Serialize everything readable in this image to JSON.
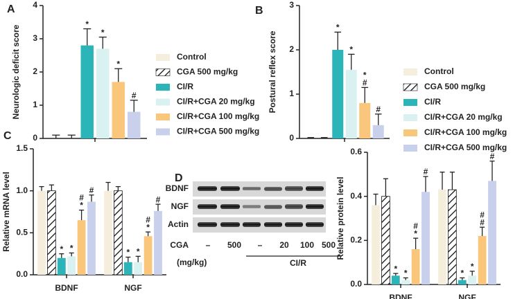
{
  "chart_data": [
    {
      "type": "bar",
      "panel": "A",
      "y_label": "Neurologic deficit score",
      "ylim": [
        0,
        4
      ],
      "yticks": [
        0,
        1,
        2,
        3,
        4
      ],
      "legend": true,
      "legend_position": "right",
      "series": [
        {
          "name": "Control",
          "color": "#f6eedc",
          "values": [
            0
          ],
          "errors": [
            0.1
          ],
          "annotations": [
            []
          ]
        },
        {
          "name": "CGA 500 mg/kg",
          "color": "#ffffff",
          "pattern": "hatch",
          "values": [
            0
          ],
          "errors": [
            0.1
          ],
          "annotations": [
            []
          ]
        },
        {
          "name": "CI/R",
          "color": "#2bb5b9",
          "values": [
            2.8
          ],
          "errors": [
            0.5
          ],
          "annotations": [
            [
              "*"
            ]
          ]
        },
        {
          "name": "CI/R+CGA 20 mg/kg",
          "color": "#d9f1f1",
          "values": [
            2.7
          ],
          "errors": [
            0.35
          ],
          "annotations": [
            [
              "*"
            ]
          ]
        },
        {
          "name": "CI/R+CGA 100 mg/kg",
          "color": "#f9c67c",
          "values": [
            1.7
          ],
          "errors": [
            0.4
          ],
          "annotations": [
            [
              "*"
            ]
          ]
        },
        {
          "name": "CI/R+CGA 500 mg/kg",
          "color": "#c8d0ec",
          "values": [
            0.8
          ],
          "errors": [
            0.35
          ],
          "annotations": [
            [
              "#"
            ]
          ]
        }
      ]
    },
    {
      "type": "bar",
      "panel": "B",
      "y_label": "Postural reflex score",
      "ylim": [
        0,
        3
      ],
      "yticks": [
        0,
        1,
        2,
        3
      ],
      "legend": true,
      "legend_position": "right",
      "series": [
        {
          "name": "Control",
          "color": "#f6eedc",
          "values": [
            0
          ],
          "errors": [
            0.02
          ],
          "annotations": [
            []
          ]
        },
        {
          "name": "CGA 500 mg/kg",
          "color": "#ffffff",
          "pattern": "hatch",
          "values": [
            0
          ],
          "errors": [
            0.02
          ],
          "annotations": [
            []
          ]
        },
        {
          "name": "CI/R",
          "color": "#2bb5b9",
          "values": [
            2.0
          ],
          "errors": [
            0.4
          ],
          "annotations": [
            [
              "*"
            ]
          ]
        },
        {
          "name": "CI/R+CGA 20 mg/kg",
          "color": "#d9f1f1",
          "values": [
            1.55
          ],
          "errors": [
            0.35
          ],
          "annotations": [
            [
              "*"
            ]
          ]
        },
        {
          "name": "CI/R+CGA 100 mg/kg",
          "color": "#f9c67c",
          "values": [
            0.8
          ],
          "errors": [
            0.35
          ],
          "annotations": [
            [
              "#",
              "*"
            ]
          ]
        },
        {
          "name": "CI/R+CGA 500 mg/kg",
          "color": "#c8d0ec",
          "values": [
            0.3
          ],
          "errors": [
            0.25
          ],
          "annotations": [
            [
              "#"
            ]
          ]
        }
      ]
    },
    {
      "type": "bar",
      "panel": "C",
      "y_label": "Relative mRNA level",
      "categories": [
        "BDNF",
        "NGF"
      ],
      "ylim": [
        0,
        1.5
      ],
      "yticks": [
        {
          "value": 0,
          "label": "0.0"
        },
        0.5,
        {
          "value": 1,
          "label": "1.0"
        },
        1.5
      ],
      "legend": false,
      "series": [
        {
          "name": "Control",
          "color": "#f6eedc",
          "values": [
            1.0,
            1.0
          ],
          "errors": [
            0.05,
            0.1
          ],
          "annotations": [
            [],
            []
          ]
        },
        {
          "name": "CGA 500 mg/kg",
          "color": "#ffffff",
          "pattern": "hatch",
          "values": [
            1.0,
            1.0
          ],
          "errors": [
            0.07,
            0.05
          ],
          "annotations": [
            [],
            []
          ]
        },
        {
          "name": "CI/R",
          "color": "#2bb5b9",
          "values": [
            0.2,
            0.15
          ],
          "errors": [
            0.05,
            0.06
          ],
          "annotations": [
            [
              "*"
            ],
            [
              "*"
            ]
          ]
        },
        {
          "name": "CI/R+CGA 20 mg/kg",
          "color": "#d9f1f1",
          "values": [
            0.22,
            0.15
          ],
          "errors": [
            0.04,
            0.07
          ],
          "annotations": [
            [
              "*"
            ],
            [
              "*"
            ]
          ]
        },
        {
          "name": "CI/R+CGA 100 mg/kg",
          "color": "#f9c67c",
          "values": [
            0.65,
            0.46
          ],
          "errors": [
            0.12,
            0.05
          ],
          "annotations": [
            [
              "*",
              "#"
            ],
            [
              "*",
              "#"
            ]
          ]
        },
        {
          "name": "CI/R+CGA 500 mg/kg",
          "color": "#c8d0ec",
          "values": [
            0.87,
            0.76
          ],
          "errors": [
            0.08,
            0.08
          ],
          "annotations": [
            [
              "#"
            ],
            [
              "#"
            ]
          ]
        }
      ]
    },
    {
      "type": "bar",
      "panel": "D",
      "y_label": "Relative protein level",
      "categories": [
        "BDNF",
        "NGF"
      ],
      "ylim": [
        0,
        0.6
      ],
      "yticks": [
        {
          "value": 0,
          "label": "0.0"
        },
        0.2,
        0.4,
        0.6
      ],
      "legend": false,
      "series": [
        {
          "name": "Control",
          "color": "#f6eedc",
          "values": [
            0.36,
            0.43
          ],
          "errors": [
            0.05,
            0.08
          ],
          "annotations": [
            [],
            []
          ]
        },
        {
          "name": "CGA 500 mg/kg",
          "color": "#ffffff",
          "pattern": "hatch",
          "values": [
            0.4,
            0.43
          ],
          "errors": [
            0.08,
            0.08
          ],
          "annotations": [
            [],
            []
          ]
        },
        {
          "name": "CI/R",
          "color": "#2bb5b9",
          "values": [
            0.04,
            0.02
          ],
          "errors": [
            0.01,
            0.01
          ],
          "annotations": [
            [
              "*"
            ],
            [
              "*"
            ]
          ]
        },
        {
          "name": "CI/R+CGA 20 mg/kg",
          "color": "#d9f1f1",
          "values": [
            0.02,
            0.04
          ],
          "errors": [
            0.01,
            0.02
          ],
          "annotations": [
            [
              "*"
            ],
            [
              "*"
            ]
          ]
        },
        {
          "name": "CI/R+CGA 100 mg/kg",
          "color": "#f9c67c",
          "values": [
            0.16,
            0.22
          ],
          "errors": [
            0.05,
            0.04
          ],
          "annotations": [
            [
              "*",
              "#"
            ],
            [
              "#",
              "#"
            ]
          ]
        },
        {
          "name": "CI/R+CGA 500 mg/kg",
          "color": "#c8d0ec",
          "values": [
            0.42,
            0.47
          ],
          "errors": [
            0.07,
            0.09
          ],
          "annotations": [
            [
              "#"
            ],
            [
              "#"
            ]
          ]
        }
      ]
    }
  ],
  "blot": {
    "rows": [
      "BDNF",
      "NGF",
      "Actin"
    ],
    "dose_label": "CGA",
    "unit_label": "(mg/kg)",
    "lanes": [
      "–",
      "500",
      "–",
      "20",
      "100",
      "500"
    ],
    "group_label": "CI/R"
  }
}
